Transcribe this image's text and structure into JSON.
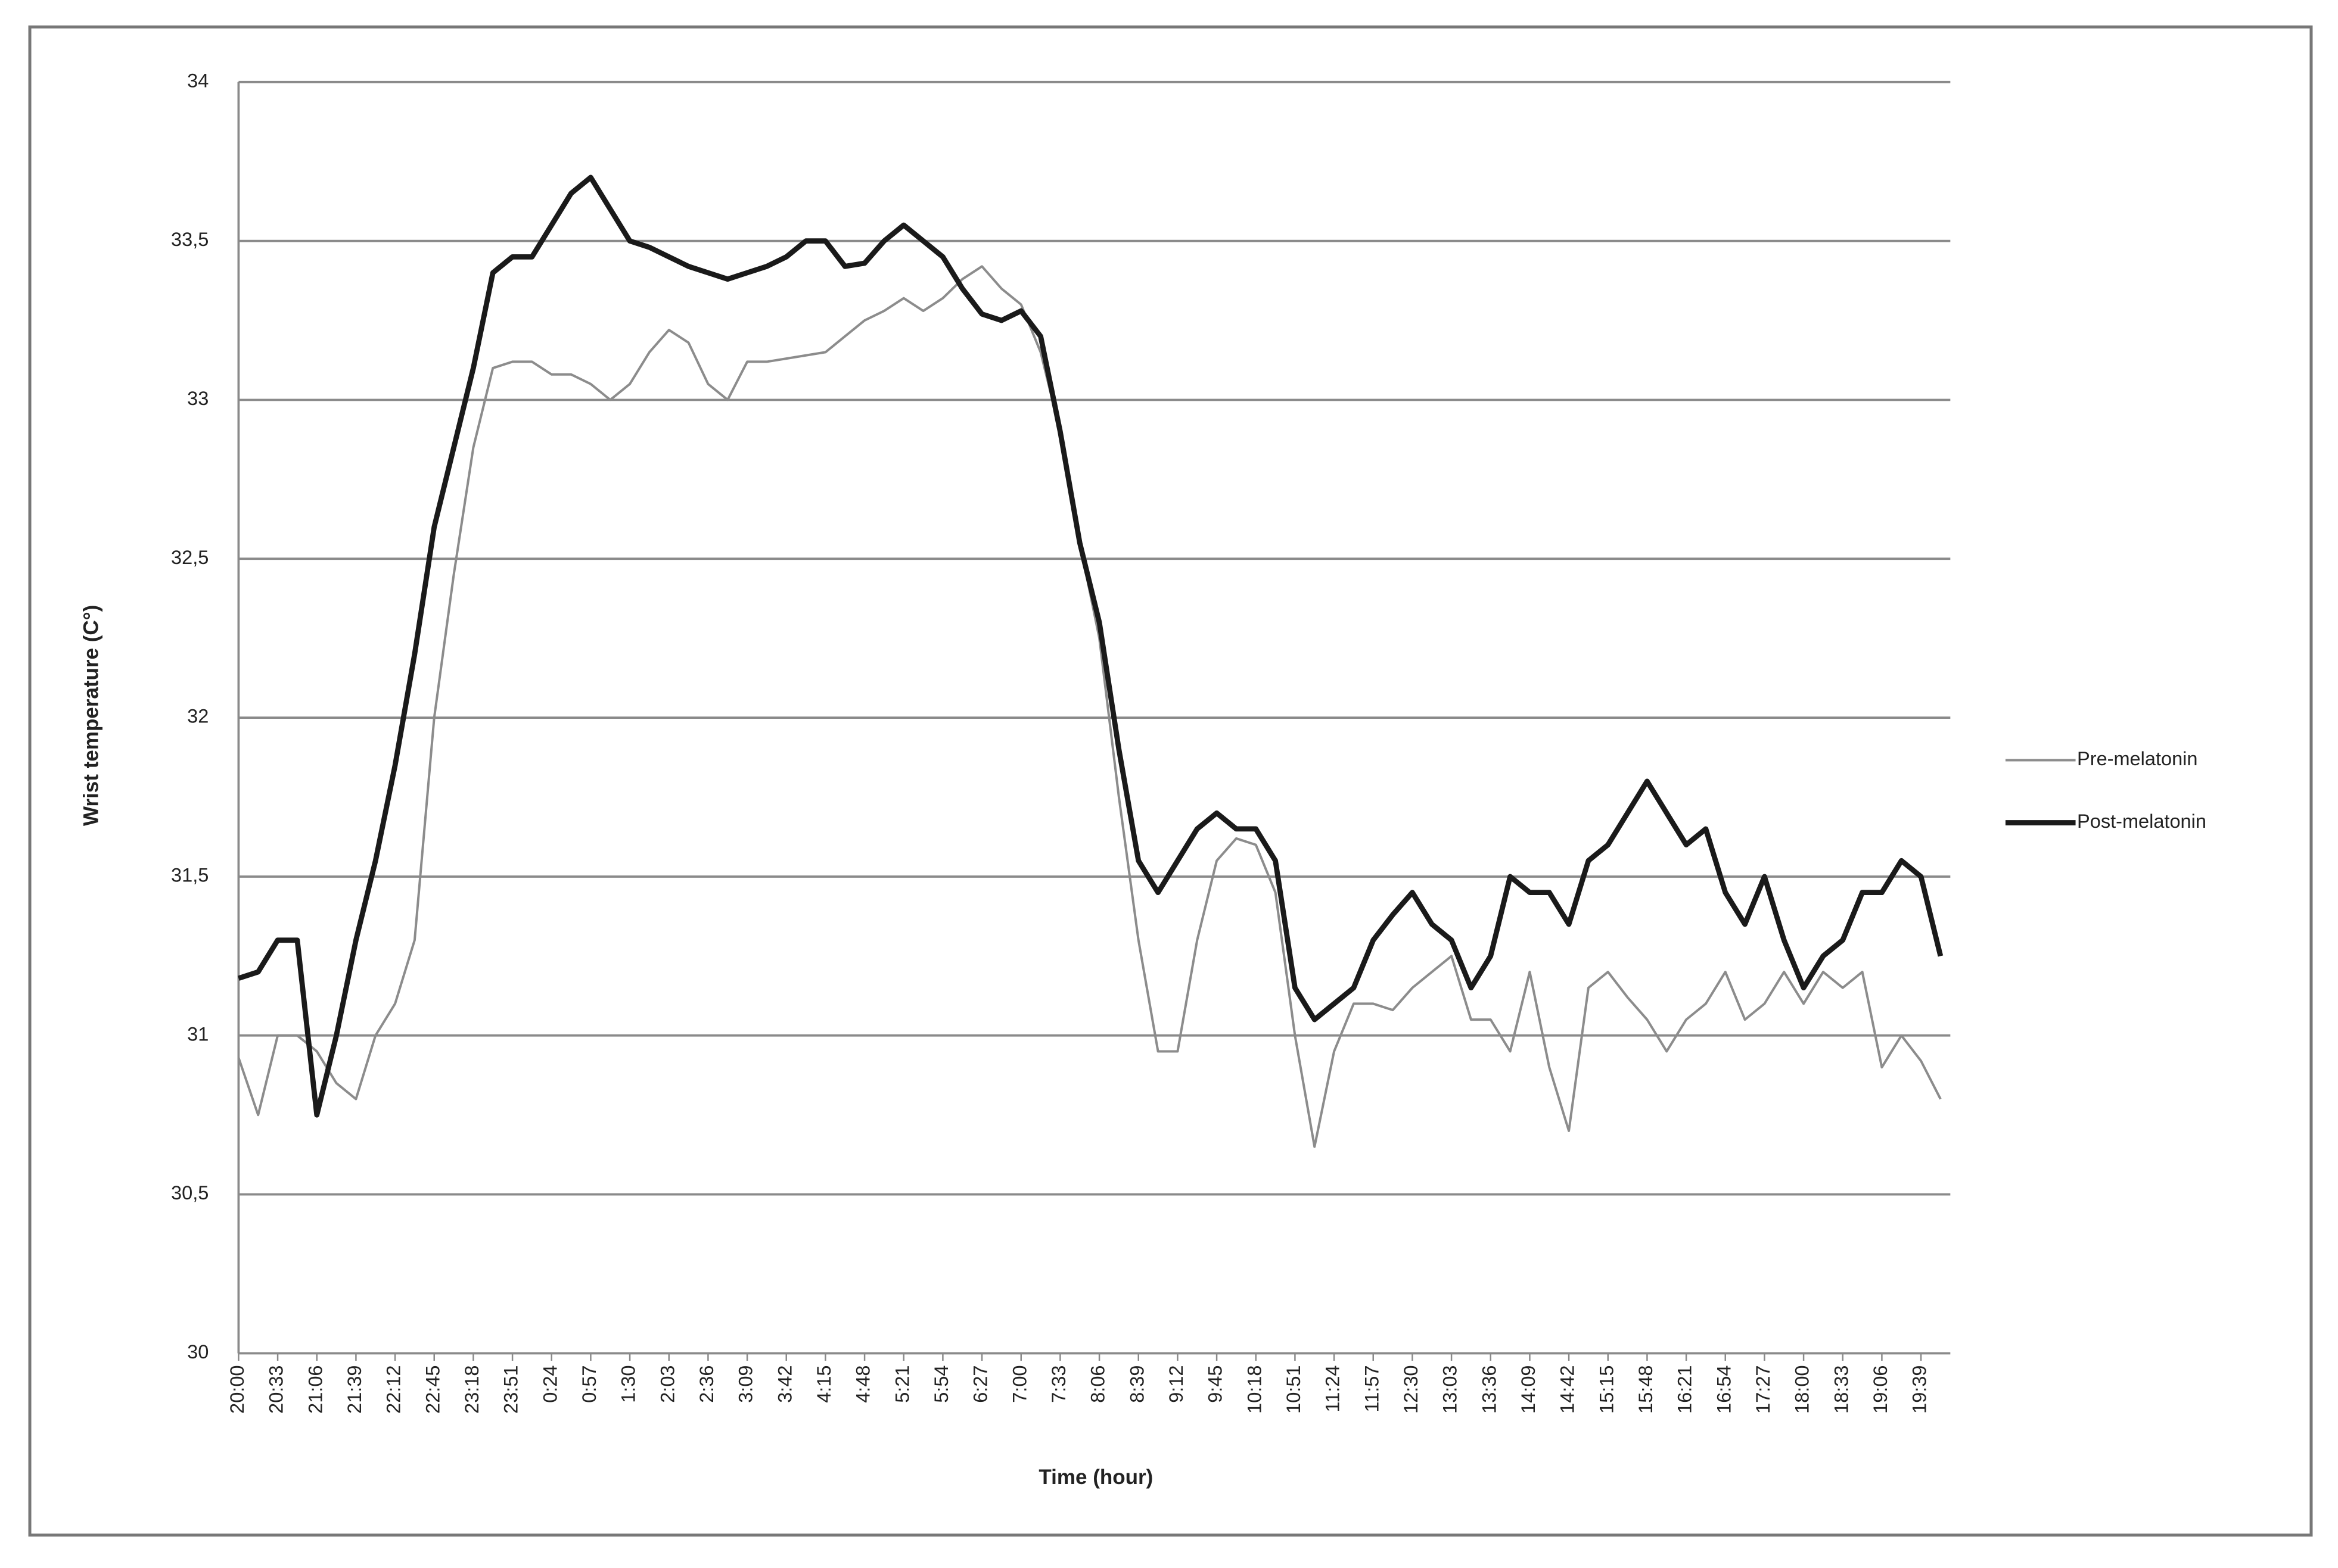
{
  "chart_data": {
    "type": "line",
    "y_label": "Wrist temperature (C°)",
    "x_label": "Time (hour)",
    "categories": [
      "20:00",
      null,
      "20:33",
      null,
      "21:06",
      null,
      "21:39",
      null,
      "22:12",
      null,
      "22:45",
      null,
      "23:18",
      null,
      "23:51",
      null,
      "0:24",
      null,
      "0:57",
      null,
      "1:30",
      null,
      "2:03",
      null,
      "2:36",
      null,
      "3:09",
      null,
      "3:42",
      null,
      "4:15",
      null,
      "4:48",
      null,
      "5:21",
      null,
      "5:54",
      null,
      "6:27",
      null,
      "7:00",
      null,
      "7:33",
      null,
      "8:06",
      null,
      "8:39",
      null,
      "9:12",
      null,
      "9:45",
      null,
      "10:18",
      null,
      "10:51",
      null,
      "11:24",
      null,
      "11:57",
      null,
      "12:30",
      null,
      "13:03",
      null,
      "13:36",
      null,
      "14:09",
      null,
      "14:42",
      null,
      "15:15",
      null,
      "15:48",
      null,
      "16:21",
      null,
      "16:54",
      null,
      "17:27",
      null,
      "18:00",
      null,
      "18:33",
      null,
      "19:06",
      null,
      "19:39",
      null
    ],
    "series": [
      {
        "name": "Pre-melatonin",
        "color": "#8c8c8c",
        "values": [
          30.93,
          30.75,
          31.0,
          31.0,
          30.95,
          30.85,
          30.8,
          31.0,
          31.1,
          31.3,
          32.0,
          32.45,
          32.85,
          33.1,
          33.12,
          33.12,
          33.08,
          33.08,
          33.05,
          33.0,
          33.05,
          33.15,
          33.22,
          33.18,
          33.05,
          33.0,
          33.12,
          33.12,
          33.13,
          33.14,
          33.15,
          33.2,
          33.25,
          33.28,
          33.32,
          33.28,
          33.32,
          33.38,
          33.42,
          33.35,
          33.3,
          33.15,
          32.9,
          32.55,
          32.25,
          31.75,
          31.3,
          30.95,
          30.95,
          31.3,
          31.55,
          31.62,
          31.6,
          31.45,
          31.0,
          30.65,
          30.95,
          31.1,
          31.1,
          31.08,
          31.15,
          31.2,
          31.25,
          31.05,
          31.05,
          30.95,
          31.2,
          30.9,
          30.7,
          31.15,
          31.2,
          31.12,
          31.05,
          30.95,
          31.05,
          31.1,
          31.2,
          31.05,
          31.1,
          31.2,
          31.1,
          31.2,
          31.15,
          31.2,
          30.9,
          31.0,
          30.92,
          30.8
        ]
      },
      {
        "name": "Post-melatonin",
        "color": "#1a1a1a",
        "values": [
          31.18,
          31.2,
          31.3,
          31.3,
          30.75,
          31.0,
          31.3,
          31.55,
          31.85,
          32.2,
          32.6,
          32.85,
          33.1,
          33.4,
          33.45,
          33.45,
          33.55,
          33.65,
          33.7,
          33.6,
          33.5,
          33.48,
          33.45,
          33.42,
          33.4,
          33.38,
          33.4,
          33.42,
          33.45,
          33.5,
          33.5,
          33.42,
          33.43,
          33.5,
          33.55,
          33.5,
          33.45,
          33.35,
          33.27,
          33.25,
          33.28,
          33.2,
          32.9,
          32.55,
          32.3,
          31.9,
          31.55,
          31.45,
          31.55,
          31.65,
          31.7,
          31.65,
          31.65,
          31.55,
          31.15,
          31.05,
          31.1,
          31.15,
          31.3,
          31.38,
          31.45,
          31.35,
          31.3,
          31.15,
          31.25,
          31.5,
          31.45,
          31.45,
          31.35,
          31.55,
          31.6,
          31.7,
          31.8,
          31.7,
          31.6,
          31.65,
          31.45,
          31.35,
          31.5,
          31.3,
          31.15,
          31.25,
          31.3,
          31.45,
          31.45,
          31.55,
          31.5,
          31.25
        ]
      }
    ],
    "ylim": [
      30,
      34
    ],
    "yticks": [
      30,
      {
        "value": 30.5,
        "label": "30,5"
      },
      31,
      {
        "value": 31.5,
        "label": "31,5"
      },
      32,
      {
        "value": 32.5,
        "label": "32,5"
      },
      33,
      {
        "value": 33.5,
        "label": "33,5"
      },
      34
    ],
    "grid": true,
    "legend": "right"
  }
}
